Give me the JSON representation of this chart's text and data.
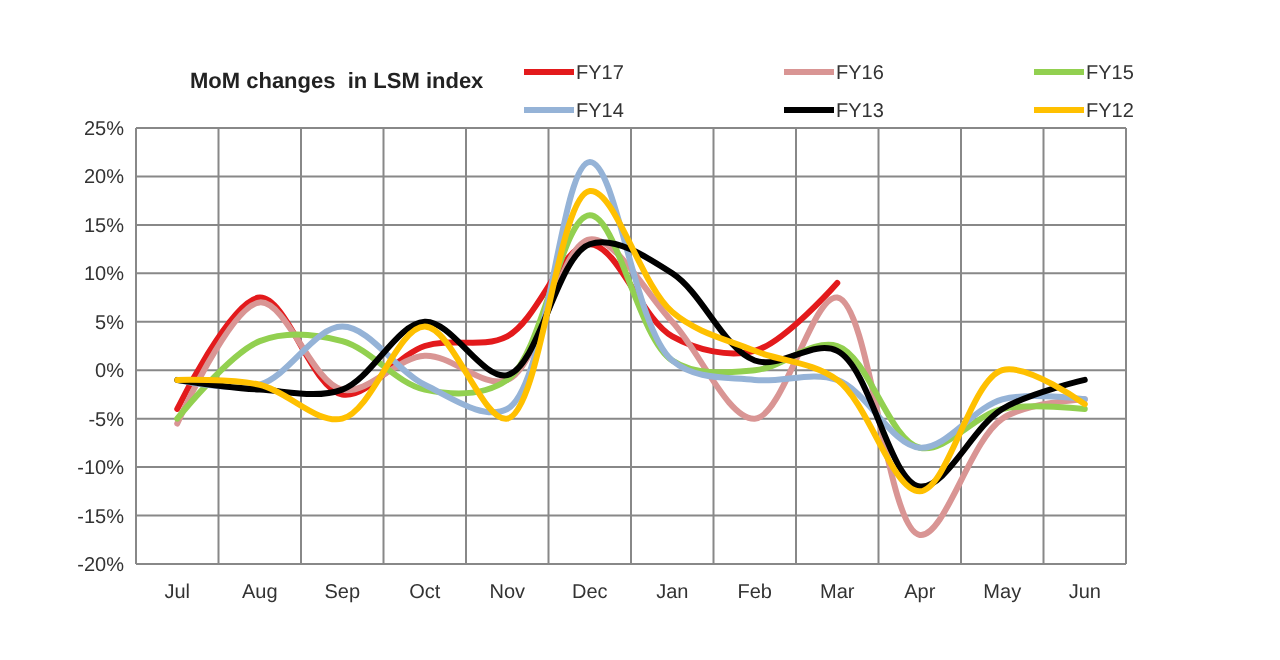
{
  "chart_data": {
    "type": "line",
    "title": "MoM changes  in LSM index",
    "categories": [
      "Jul",
      "Aug",
      "Sep",
      "Oct",
      "Nov",
      "Dec",
      "Jan",
      "Feb",
      "Mar",
      "Apr",
      "May",
      "Jun"
    ],
    "series": [
      {
        "name": "FY17",
        "color": "#e31a1c",
        "values": [
          -4,
          7.5,
          -2.5,
          2.5,
          3.5,
          13,
          3.5,
          2,
          9,
          null,
          null,
          null
        ]
      },
      {
        "name": "FY16",
        "color": "#d99594",
        "values": [
          -5.5,
          7,
          -2,
          1.5,
          -1,
          13.5,
          5,
          -5,
          7.5,
          -17,
          -5,
          -3
        ]
      },
      {
        "name": "FY15",
        "color": "#92d050",
        "values": [
          -5,
          3,
          3,
          -2,
          -1,
          16,
          1,
          0,
          2.5,
          -8,
          -4,
          -4
        ]
      },
      {
        "name": "FY14",
        "color": "#95b3d7",
        "values": [
          -1,
          -1.5,
          4.5,
          -1.5,
          -4,
          21.5,
          1,
          -1,
          -1,
          -8,
          -3,
          -3
        ]
      },
      {
        "name": "FY13",
        "color": "#000000",
        "values": [
          -1,
          -2,
          -2,
          5,
          -0.5,
          13,
          10,
          1,
          2,
          -12,
          -4,
          -1
        ]
      },
      {
        "name": "FY12",
        "color": "#ffc000",
        "values": [
          -1,
          -1.5,
          -5,
          4.5,
          -5,
          18.5,
          6,
          2,
          -1,
          -12.5,
          0,
          -3.5
        ]
      }
    ],
    "ylim": [
      -20,
      25
    ],
    "yticks": [
      {
        "value": -20,
        "label": "-20%"
      },
      {
        "value": -15,
        "label": "-15%"
      },
      {
        "value": -10,
        "label": "-10%"
      },
      {
        "value": -5,
        "label": "-5%"
      },
      {
        "value": 0,
        "label": "0%"
      },
      {
        "value": 5,
        "label": "5%"
      },
      {
        "value": 10,
        "label": "10%"
      },
      {
        "value": 15,
        "label": "15%"
      },
      {
        "value": 20,
        "label": "20%"
      },
      {
        "value": 25,
        "label": "25%"
      }
    ],
    "grid": true,
    "legend": "top right",
    "marker": "none",
    "line_style": "solid"
  }
}
